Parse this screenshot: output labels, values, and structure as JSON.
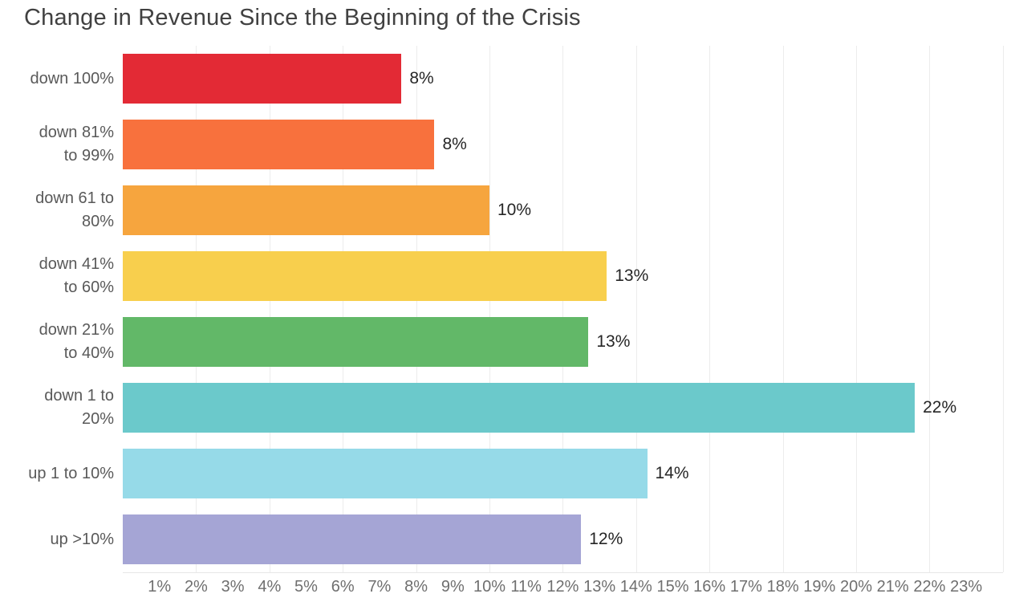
{
  "title": "Change in Revenue Since the Beginning of the Crisis",
  "colors": {
    "background": "#ffffff",
    "title_text": "#414141",
    "category_text": "#595959",
    "value_text": "#262626",
    "tick_text": "#6f6f6f",
    "gridline": "#ececec",
    "axis_line": "#e7e7e7"
  },
  "chart_data": {
    "type": "bar",
    "orientation": "horizontal",
    "title": "Change in Revenue Since the Beginning of the Crisis",
    "categories": [
      "down 100%",
      "down 81% to 99%",
      "down 61 to 80%",
      "down 41% to 60%",
      "down 21% to 40%",
      "down 1 to 20%",
      "up 1 to 10%",
      "up >10%"
    ],
    "category_lines": [
      [
        "down 100%"
      ],
      [
        "down 81%",
        "to 99%"
      ],
      [
        "down 61 to",
        "80%"
      ],
      [
        "down 41%",
        "to 60%"
      ],
      [
        "down 21%",
        "to 40%"
      ],
      [
        "down 1 to",
        "20%"
      ],
      [
        "up 1 to 10%"
      ],
      [
        "up >10%"
      ]
    ],
    "values": [
      8,
      8,
      10,
      13,
      13,
      22,
      14,
      12
    ],
    "value_labels": [
      "8%",
      "8%",
      "10%",
      "13%",
      "13%",
      "22%",
      "14%",
      "12%"
    ],
    "bar_lengths_pct": [
      7.6,
      8.5,
      10.0,
      13.2,
      12.7,
      21.6,
      14.3,
      12.5
    ],
    "bar_colors": [
      "#e32a35",
      "#f8713d",
      "#f6a53e",
      "#f8cf4d",
      "#62b868",
      "#6bc9cb",
      "#96dae8",
      "#a5a5d5"
    ],
    "x_ticks": [
      "1%",
      "2%",
      "3%",
      "4%",
      "5%",
      "6%",
      "7%",
      "8%",
      "9%",
      "10%",
      "11%",
      "12%",
      "13%",
      "14%",
      "15%",
      "16%",
      "17%",
      "18%",
      "19%",
      "20%",
      "21%",
      "22%",
      "23%"
    ],
    "xlim": [
      0,
      23.4
    ],
    "gridline_every_pct": 2,
    "ylabel": "",
    "xlabel": "",
    "legend": "none",
    "data_labels": "outside-end"
  }
}
